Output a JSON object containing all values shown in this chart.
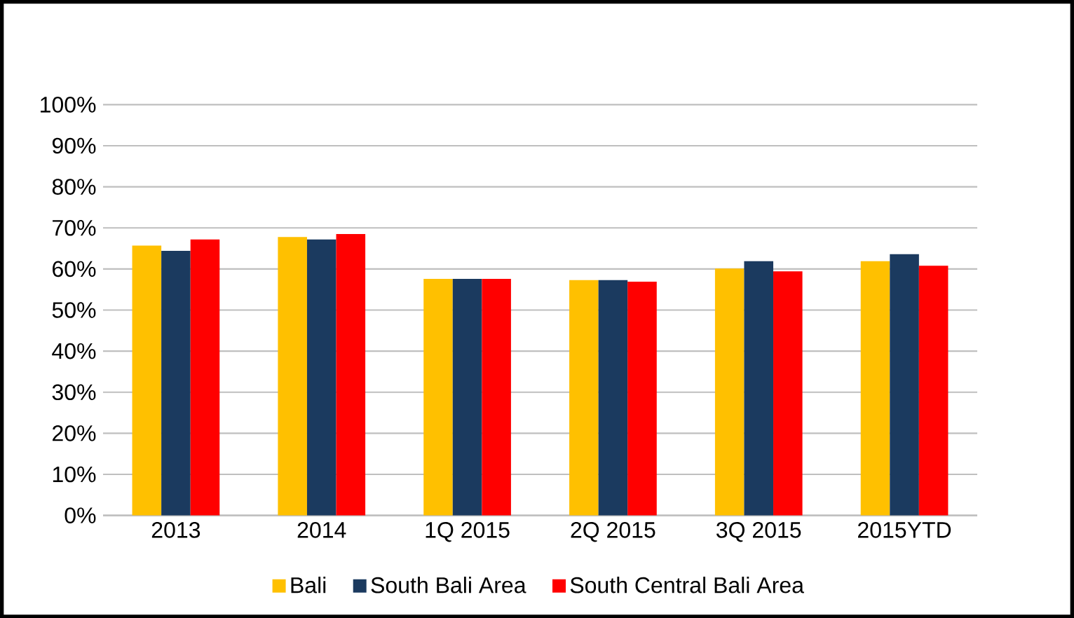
{
  "chart_data": {
    "type": "bar",
    "categories": [
      "2013",
      "2014",
      "1Q 2015",
      "2Q 2015",
      "3Q 2015",
      "2015YTD"
    ],
    "series": [
      {
        "name": "Bali",
        "color": "#ffc000",
        "values": [
          65.7,
          67.8,
          57.6,
          57.3,
          60.1,
          61.9
        ]
      },
      {
        "name": "South Bali Area",
        "color": "#1b3a5f",
        "values": [
          64.4,
          67.2,
          57.6,
          57.3,
          61.9,
          63.6
        ]
      },
      {
        "name": "South Central Bali Area",
        "color": "#ff0000",
        "values": [
          67.2,
          68.5,
          57.6,
          56.9,
          59.4,
          60.8
        ]
      }
    ],
    "ylim": [
      0,
      100
    ],
    "yticks": [
      {
        "value": 0,
        "label": "0%"
      },
      {
        "value": 10,
        "label": "10%"
      },
      {
        "value": 20,
        "label": "20%"
      },
      {
        "value": 30,
        "label": "30%"
      },
      {
        "value": 40,
        "label": "40%"
      },
      {
        "value": 50,
        "label": "50%"
      },
      {
        "value": 60,
        "label": "60%"
      },
      {
        "value": 70,
        "label": "70%"
      },
      {
        "value": 80,
        "label": "80%"
      },
      {
        "value": 90,
        "label": "90%"
      },
      {
        "value": 100,
        "label": "100%"
      }
    ],
    "grid": "y",
    "legend": "bottom"
  }
}
